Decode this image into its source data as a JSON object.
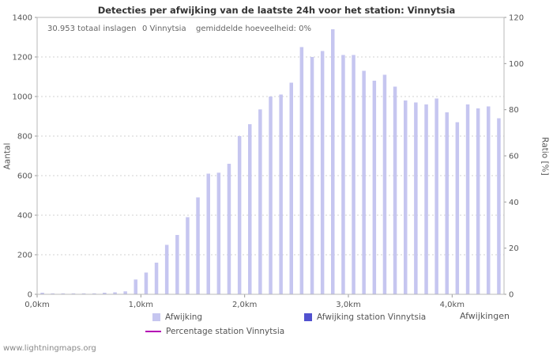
{
  "page": {
    "watermark": "www.lightningmaps.org"
  },
  "chart_data": {
    "type": "bar",
    "title": "Detecties per afwijking van de laatste 24h voor het station: Vinnytsia",
    "annotations": {
      "total": "30.953 totaal inslagen",
      "station": "0 Vinnytsia",
      "average": "gemiddelde hoeveelheid: 0%"
    },
    "x_axis": {
      "label": "Afwijkingen",
      "min": 0,
      "max": 4.5,
      "ticks": [
        {
          "value": 0,
          "label": "0,0km"
        },
        {
          "value": 1,
          "label": "1,0km"
        },
        {
          "value": 2,
          "label": "2,0km"
        },
        {
          "value": 3,
          "label": "3,0km"
        },
        {
          "value": 4,
          "label": "4,0km"
        }
      ]
    },
    "left_axis": {
      "label": "Aantal",
      "min": 0,
      "max": 1400,
      "ticks": [
        0,
        200,
        400,
        600,
        800,
        1000,
        1200,
        1400
      ]
    },
    "right_axis": {
      "label": "Ratio [%]",
      "min": 0,
      "max": 120,
      "ticks": [
        0,
        20,
        40,
        60,
        80,
        100,
        120
      ]
    },
    "x": [
      0,
      0.1,
      0.2,
      0.3,
      0.4,
      0.5,
      0.6,
      0.7,
      0.8,
      0.9,
      1,
      1.1,
      1.2,
      1.3,
      1.4,
      1.5,
      1.6,
      1.7,
      1.8,
      1.9,
      2,
      2.1,
      2.2,
      2.3,
      2.4,
      2.5,
      2.6,
      2.7,
      2.8,
      2.9,
      3,
      3.1,
      3.2,
      3.3,
      3.4,
      3.5,
      3.6,
      3.7,
      3.8,
      3.9,
      4,
      4.1,
      4.2,
      4.3,
      4.4
    ],
    "series": [
      {
        "name": "Afwijking",
        "type": "bar",
        "color": "#c6c6f0",
        "values": [
          8,
          5,
          5,
          5,
          5,
          5,
          8,
          10,
          15,
          75,
          110,
          160,
          250,
          300,
          390,
          490,
          610,
          615,
          660,
          800,
          860,
          935,
          1000,
          1010,
          1070,
          1250,
          1200,
          1230,
          1340,
          1210,
          1210,
          1130,
          1080,
          1110,
          1050,
          980,
          970,
          960,
          990,
          920,
          870,
          960,
          940,
          950,
          890
        ]
      },
      {
        "name": "Afwijking station Vinnytsia",
        "type": "bar",
        "color": "#5151cf",
        "values": []
      },
      {
        "name": "Percentage station Vinnytsia",
        "type": "line",
        "color": "#b400b4",
        "values": []
      }
    ],
    "legend": [
      {
        "label": "Afwijking",
        "swatch": "square",
        "color": "#c6c6f0"
      },
      {
        "label": "Afwijking station Vinnytsia",
        "swatch": "square",
        "color": "#5151cf"
      },
      {
        "label": "Percentage station Vinnytsia",
        "swatch": "line",
        "color": "#b400b4"
      }
    ],
    "grid": "horizontal-dashed",
    "legend_position": "bottom"
  }
}
